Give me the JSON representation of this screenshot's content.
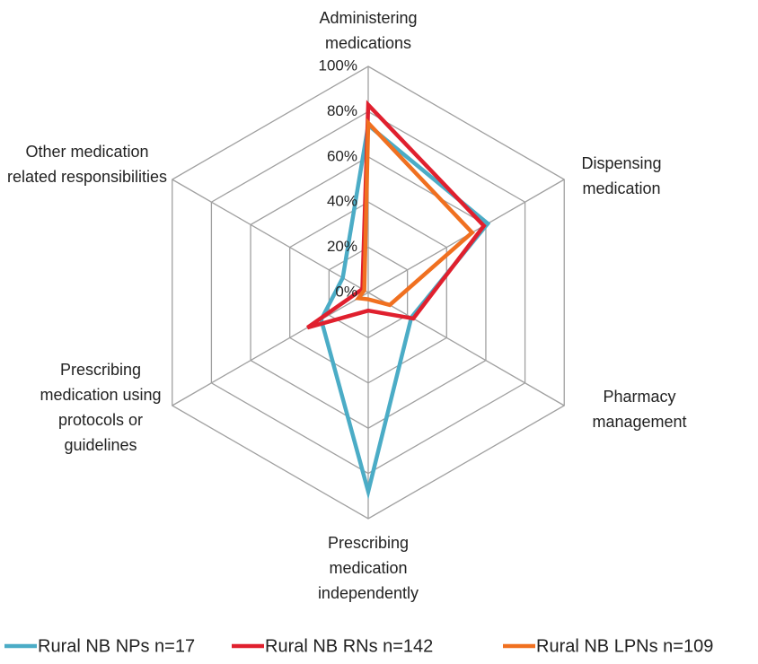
{
  "chart_data": {
    "type": "radar",
    "categories": [
      "Administering medications",
      "Dispensing medication",
      "Pharmacy management",
      "Prescribing medication independently",
      "Prescribing medication using protocols or guidelines",
      "Other medication related responsibilities"
    ],
    "series": [
      {
        "name": "Rural NB NPs n=17",
        "color": "#4bacc6",
        "values": [
          74,
          61,
          22,
          88,
          24,
          13
        ]
      },
      {
        "name": "Rural NB RNs n=142",
        "color": "#e0202e",
        "values": [
          83,
          59,
          23,
          8,
          31,
          3
        ]
      },
      {
        "name": "Rural NB LPNs n=109",
        "color": "#f07020",
        "values": [
          75,
          53,
          11,
          3,
          5,
          2
        ]
      }
    ],
    "rlim": [
      0,
      100
    ],
    "rticks": [
      {
        "value": 0,
        "label": "0%"
      },
      {
        "value": 20,
        "label": "20%"
      },
      {
        "value": 40,
        "label": "40%"
      },
      {
        "value": 60,
        "label": "60%"
      },
      {
        "value": 80,
        "label": "80%"
      },
      {
        "value": 100,
        "label": "100%"
      }
    ],
    "grid": true,
    "legend": "bottom"
  }
}
